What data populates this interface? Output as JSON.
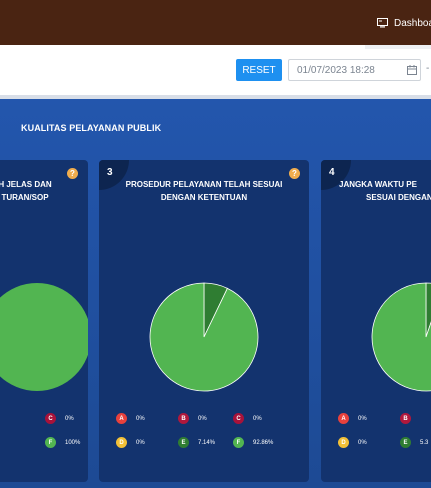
{
  "header": {
    "dashboard_label": "Dashboa"
  },
  "filters": {
    "reset_label": "RESET",
    "date_value": "01/07/2023 18:28",
    "separator": "-"
  },
  "section": {
    "title": "KUALITAS PELAYANAN PUBLIK"
  },
  "colors": {
    "legend": {
      "A": "#e8413c",
      "B": "#b0183c",
      "C": "#a8123a",
      "D": "#f2c037",
      "E": "#2f7d32",
      "F": "#52b551"
    },
    "pie_main": "#52b551",
    "pie_minor": "#2f7d32"
  },
  "cards": [
    {
      "number": "",
      "title_line1": "H JELAS DAN",
      "title_line2": "TURAN/SOP",
      "help": "?",
      "legend": [
        {
          "key": "C",
          "value": "0%"
        },
        {
          "key": "F",
          "value": "100%"
        }
      ],
      "chart_data": {
        "type": "pie",
        "values": [
          100
        ]
      }
    },
    {
      "number": "3",
      "title_line1": "PROSEDUR PELAYANAN TELAH SESUAI",
      "title_line2": "DENGAN KETENTUAN",
      "help": "?",
      "legend": [
        {
          "key": "A",
          "value": "0%"
        },
        {
          "key": "B",
          "value": "0%"
        },
        {
          "key": "C",
          "value": "0%"
        },
        {
          "key": "D",
          "value": "0%"
        },
        {
          "key": "E",
          "value": "7.14%"
        },
        {
          "key": "F",
          "value": "92.86%"
        }
      ],
      "chart_data": {
        "type": "pie",
        "values": [
          7.14,
          92.86
        ]
      }
    },
    {
      "number": "4",
      "title_line1": "JANGKA WAKTU PE",
      "title_line2": "SESUAI DENGAN",
      "legend": [
        {
          "key": "A",
          "value": "0%"
        },
        {
          "key": "B",
          "value": ""
        },
        {
          "key": "D",
          "value": "0%"
        },
        {
          "key": "E",
          "value": "5.3"
        }
      ],
      "chart_data": {
        "type": "pie",
        "values": [
          5.3,
          94.7
        ]
      }
    }
  ]
}
